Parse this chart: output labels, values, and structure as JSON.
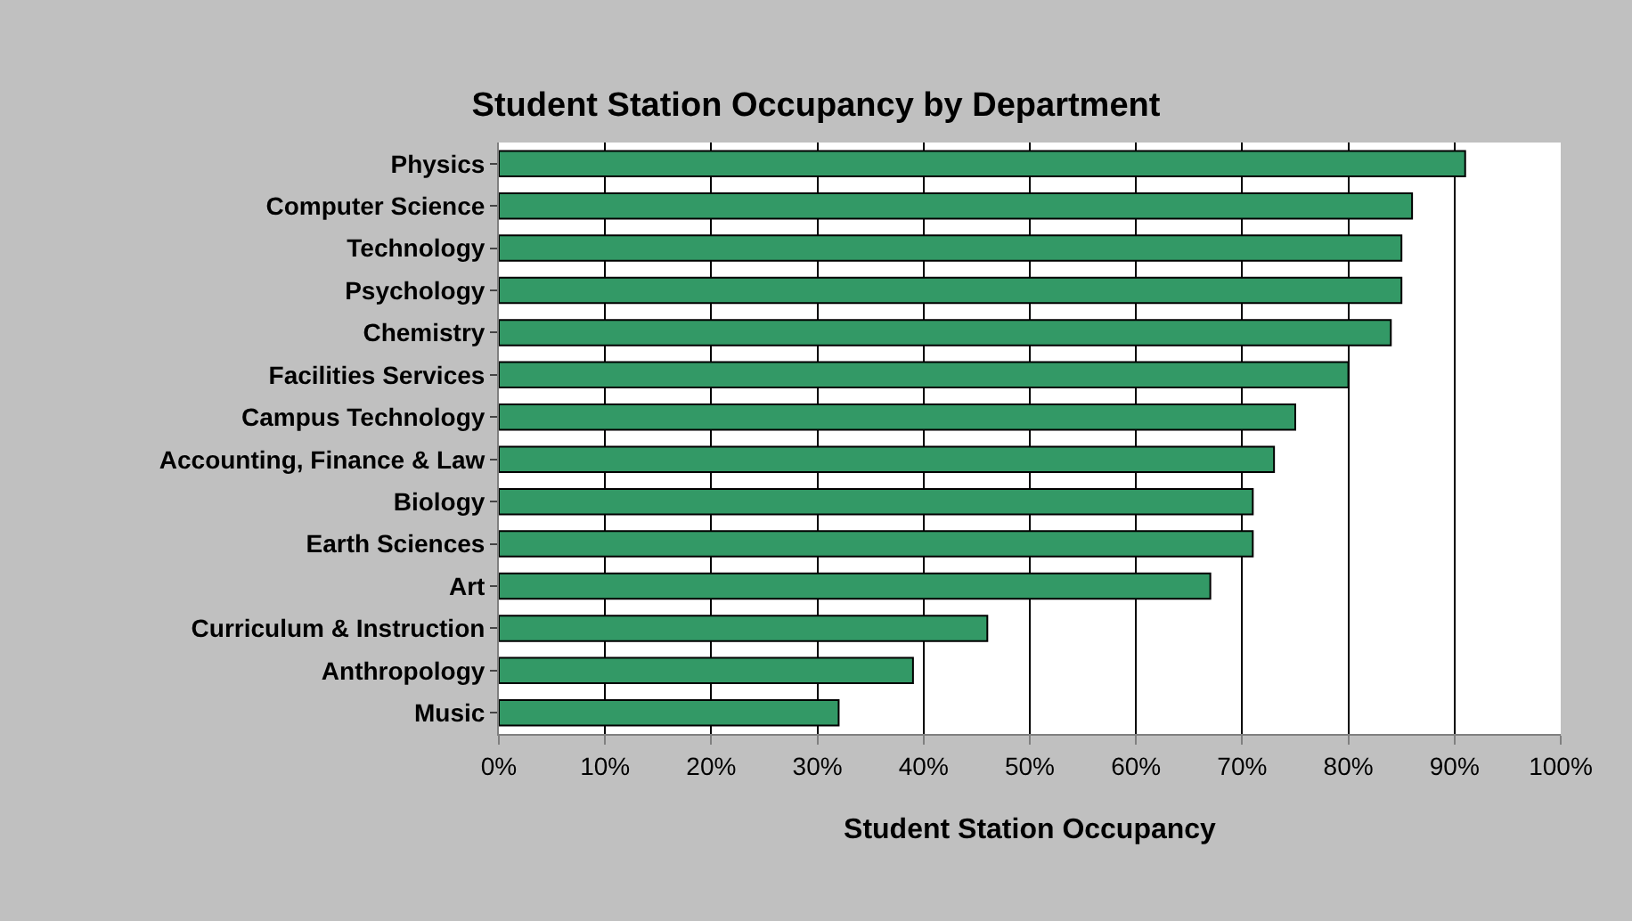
{
  "chart_data": {
    "type": "bar",
    "orientation": "horizontal",
    "title": "Student Station Occupancy by Department",
    "xlabel": "Student Station Occupancy",
    "categories": [
      "Physics",
      "Computer Science",
      "Technology",
      "Psychology",
      "Chemistry",
      "Facilities Services",
      "Campus Technology",
      "Accounting, Finance & Law",
      "Biology",
      "Earth Sciences",
      "Art",
      "Curriculum & Instruction",
      "Anthropology",
      "Music"
    ],
    "values": [
      91,
      86,
      85,
      85,
      84,
      80,
      75,
      73,
      71,
      71,
      67,
      46,
      39,
      32
    ],
    "color": "#339966",
    "xlim": [
      0,
      100
    ],
    "xticks": [
      {
        "value": 0,
        "label": "0%"
      },
      {
        "value": 10,
        "label": "10%"
      },
      {
        "value": 20,
        "label": "20%"
      },
      {
        "value": 30,
        "label": "30%"
      },
      {
        "value": 40,
        "label": "40%"
      },
      {
        "value": 50,
        "label": "50%"
      },
      {
        "value": 60,
        "label": "60%"
      },
      {
        "value": 70,
        "label": "70%"
      },
      {
        "value": 80,
        "label": "80%"
      },
      {
        "value": 90,
        "label": "90%"
      },
      {
        "value": 100,
        "label": "100%"
      }
    ],
    "grid": "x",
    "legend": false
  }
}
